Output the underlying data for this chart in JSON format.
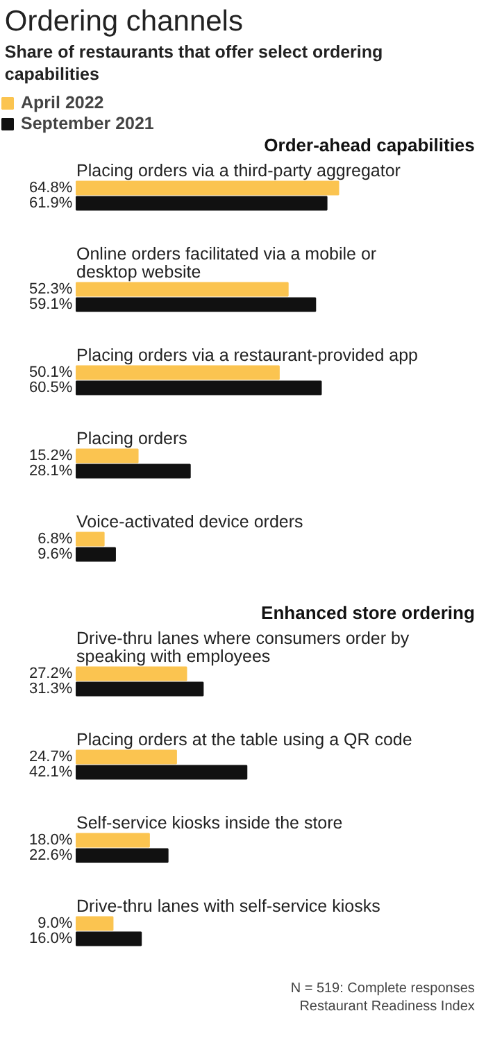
{
  "chart_data": [
    {
      "type": "bar",
      "orientation": "horizontal",
      "title": "Ordering channels",
      "subtitle": "Share of restaurants that offer select ordering capabilities",
      "legend": "top left",
      "tick_labels": false,
      "annotations": [
        "Order-ahead capabilities"
      ],
      "categories": [
        "Placing orders via a third-party aggregator",
        "Online orders facilitated via a mobile or desktop website",
        "Placing orders via a restaurant-provided app",
        "Placing orders",
        "Voice-activated device orders"
      ],
      "series": [
        {
          "name": "April 2022",
          "color": "#fbc450",
          "values": [
            64.8,
            52.3,
            50.1,
            15.2,
            6.8
          ],
          "value_labels": [
            "64.8%",
            "52.3%",
            "50.1%",
            "15.2%",
            "6.8%"
          ]
        },
        {
          "name": "September 2021",
          "color": "#111111",
          "values": [
            61.9,
            59.1,
            60.5,
            28.1,
            9.6
          ],
          "value_labels": [
            "61.9%",
            "59.1%",
            "60.5%",
            "28.1%",
            "9.6%"
          ]
        }
      ]
    },
    {
      "type": "bar",
      "orientation": "horizontal",
      "tick_labels": false,
      "annotations": [
        "Enhanced store ordering",
        "N = 519: Complete responses",
        "Restaurant Readiness Index"
      ],
      "categories": [
        "Drive-thru lanes where consumers order by speaking with employees",
        "Placing orders at the table using a QR code",
        "Self-service kiosks inside the store",
        "Drive-thru lanes with self-service kiosks"
      ],
      "series": [
        {
          "color": "#fbc450",
          "values": [
            27.2,
            24.7,
            18.0,
            9.0
          ],
          "value_labels": [
            "27.2%",
            "24.7%",
            "18.0%",
            "9.0%"
          ]
        },
        {
          "color": "#111111",
          "values": [
            31.3,
            42.1,
            22.6,
            16.0
          ],
          "value_labels": [
            "31.3%",
            "42.1%",
            "22.6%",
            "16.0%"
          ]
        }
      ]
    }
  ]
}
